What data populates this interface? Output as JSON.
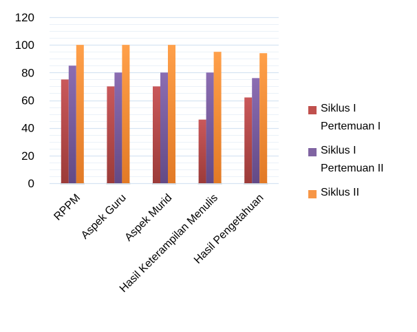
{
  "chart_data": {
    "type": "bar",
    "categories": [
      "RPPM",
      "Aspek Guru",
      "Aspek Murid",
      "Hasil Keterampilan Menulis",
      "Hasil Pengetahuan"
    ],
    "series": [
      {
        "name": "Siklus I Pertemuan I",
        "values": [
          75,
          70,
          70,
          46,
          62
        ],
        "color": "#c0504d"
      },
      {
        "name": "Siklus I Pertemuan II",
        "values": [
          85,
          80,
          80,
          80,
          76
        ],
        "color": "#8064a2"
      },
      {
        "name": "Siklus II",
        "values": [
          100,
          100,
          100,
          95,
          94
        ],
        "color": "#f79646"
      }
    ],
    "yticks": [
      "0",
      "20",
      "40",
      "60",
      "80",
      "100",
      "120"
    ],
    "ylim": [
      0,
      120
    ],
    "grid": true,
    "legend_position": "right",
    "legend_lines": [
      [
        "Siklus I",
        "Pertemuan I"
      ],
      [
        "Siklus I",
        "Pertemuan II"
      ],
      [
        "Siklus II"
      ]
    ]
  }
}
